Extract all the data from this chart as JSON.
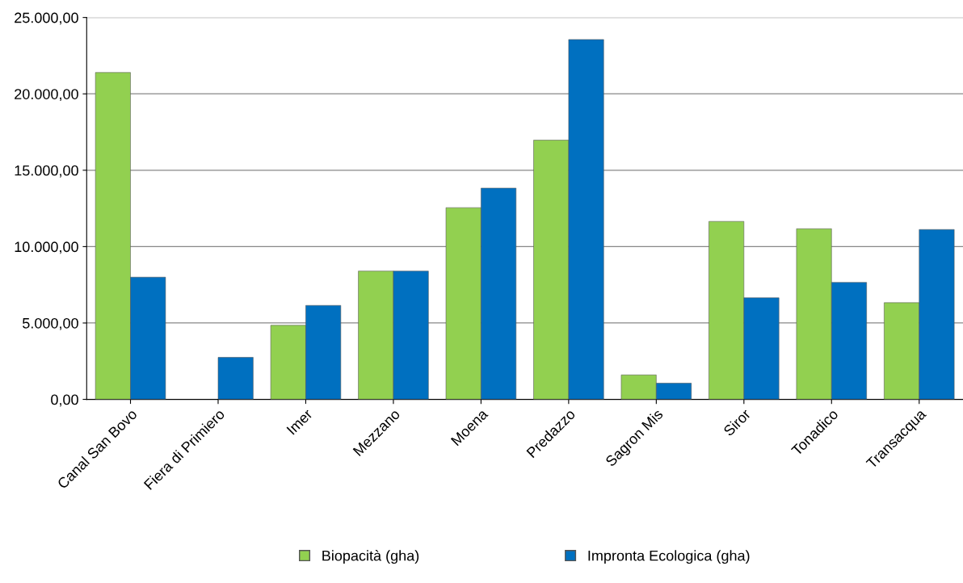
{
  "chart_data": {
    "type": "bar",
    "categories": [
      "Canal San Bovo",
      "Fiera di Primiero",
      "Imer",
      "Mezzano",
      "Moena",
      "Predazzo",
      "Sagron Mis",
      "Siror",
      "Tonadico",
      "Transacqua"
    ],
    "series": [
      {
        "name": "Biopacità (gha)",
        "color": "#92d050",
        "values": [
          21400,
          null,
          4850,
          8400,
          12550,
          16970,
          1600,
          11650,
          11170,
          6330
        ]
      },
      {
        "name": "Impronta Ecologica (gha)",
        "color": "#0070c0",
        "values": [
          8000,
          2750,
          6150,
          8400,
          13830,
          23560,
          1060,
          6650,
          7660,
          11120
        ]
      }
    ],
    "ylim": [
      0,
      25000
    ],
    "yticks": [
      {
        "value": 0,
        "label": "0,00"
      },
      {
        "value": 5000,
        "label": "5.000,00"
      },
      {
        "value": 10000,
        "label": "10.000,00"
      },
      {
        "value": 15000,
        "label": "15.000,00"
      },
      {
        "value": 20000,
        "label": "20.000,00"
      },
      {
        "value": 25000,
        "label": "25.000,00"
      }
    ],
    "grid": "y",
    "legend": "bottom"
  }
}
